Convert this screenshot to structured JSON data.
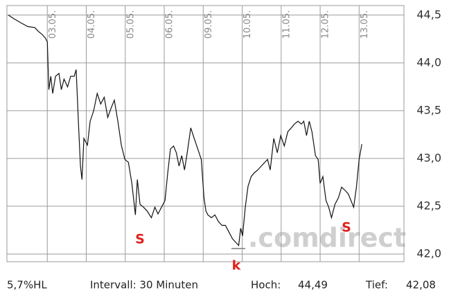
{
  "chart_data": {
    "type": "line",
    "color": "#111111",
    "x": [
      0.0,
      0.15,
      0.32,
      0.5,
      0.68,
      0.77,
      0.86,
      0.95,
      1.0,
      1.04,
      1.09,
      1.14,
      1.21,
      1.3,
      1.36,
      1.43,
      1.52,
      1.6,
      1.69,
      1.74,
      1.8,
      1.85,
      1.89,
      1.94,
      2.03,
      2.1,
      2.19,
      2.28,
      2.37,
      2.46,
      2.55,
      2.64,
      2.72,
      2.81,
      2.9,
      2.99,
      3.08,
      3.17,
      3.26,
      3.31,
      3.38,
      3.47,
      3.56,
      3.67,
      3.76,
      3.84,
      3.93,
      4.02,
      4.09,
      4.16,
      4.24,
      4.31,
      4.38,
      4.45,
      4.52,
      4.59,
      4.68,
      4.77,
      4.86,
      4.95,
      5.02,
      5.07,
      5.12,
      5.21,
      5.3,
      5.39,
      5.48,
      5.57,
      5.66,
      5.75,
      5.84,
      5.91,
      5.96,
      6.01,
      6.08,
      6.15,
      6.23,
      6.31,
      6.4,
      6.49,
      6.58,
      6.65,
      6.72,
      6.81,
      6.9,
      6.99,
      7.08,
      7.17,
      7.26,
      7.34,
      7.43,
      7.52,
      7.58,
      7.65,
      7.72,
      7.79,
      7.88,
      7.95,
      8.0,
      8.07,
      8.15,
      8.22,
      8.29,
      8.38,
      8.47,
      8.55,
      8.63,
      8.72,
      8.79,
      8.86,
      8.93,
      9.0,
      9.07
    ],
    "values": [
      44.5,
      44.46,
      44.42,
      44.38,
      44.37,
      44.33,
      44.3,
      44.26,
      44.22,
      43.72,
      43.86,
      43.68,
      43.86,
      43.89,
      43.72,
      43.83,
      43.75,
      43.86,
      43.86,
      43.93,
      43.36,
      42.92,
      42.78,
      43.21,
      43.14,
      43.39,
      43.5,
      43.68,
      43.57,
      43.64,
      43.43,
      43.53,
      43.61,
      43.39,
      43.14,
      42.99,
      42.96,
      42.74,
      42.41,
      42.78,
      42.52,
      42.49,
      42.45,
      42.38,
      42.49,
      42.42,
      42.49,
      42.56,
      42.85,
      43.1,
      43.13,
      43.06,
      42.92,
      43.03,
      42.88,
      43.06,
      43.32,
      43.21,
      43.1,
      42.99,
      42.59,
      42.45,
      42.41,
      42.38,
      42.41,
      42.34,
      42.3,
      42.3,
      42.23,
      42.16,
      42.12,
      42.09,
      42.27,
      42.19,
      42.49,
      42.71,
      42.81,
      42.85,
      42.88,
      42.92,
      42.96,
      42.99,
      42.88,
      43.21,
      43.06,
      43.24,
      43.13,
      43.28,
      43.32,
      43.36,
      43.39,
      43.36,
      43.39,
      43.24,
      43.39,
      43.28,
      43.03,
      42.99,
      42.74,
      42.81,
      42.56,
      42.49,
      42.38,
      42.52,
      42.59,
      42.7,
      42.67,
      42.63,
      42.56,
      42.49,
      42.7,
      42.99,
      43.15
    ],
    "xlim": [
      0,
      10.15
    ],
    "xticks": [
      {
        "value": 1,
        "label": "03.05."
      },
      {
        "value": 2,
        "label": "04.05."
      },
      {
        "value": 3,
        "label": "05.05."
      },
      {
        "value": 4,
        "label": "06.05."
      },
      {
        "value": 5,
        "label": "09.05."
      },
      {
        "value": 6,
        "label": "10.05."
      },
      {
        "value": 7,
        "label": "11.05."
      },
      {
        "value": 8,
        "label": "12.05."
      },
      {
        "value": 9,
        "label": "13.05."
      }
    ],
    "ylim": [
      41.92,
      44.6
    ],
    "yticks": [
      {
        "value": 42,
        "label": "42,0"
      },
      {
        "value": 42.5,
        "label": "42,5"
      },
      {
        "value": 43,
        "label": "43,0"
      },
      {
        "value": 43.5,
        "label": "43,5"
      },
      {
        "value": 44,
        "label": "44,0"
      },
      {
        "value": 44.5,
        "label": "44,5"
      }
    ],
    "grid": true,
    "annotations": [
      "S",
      "S",
      "k"
    ],
    "watermark": ".comdirect",
    "footer": {
      "range": "5,7%HL",
      "interval": "Intervall: 30 Minuten",
      "high_label": "Hoch:",
      "high": "44,49",
      "low_label": "Tief:",
      "low": "42,08"
    }
  }
}
